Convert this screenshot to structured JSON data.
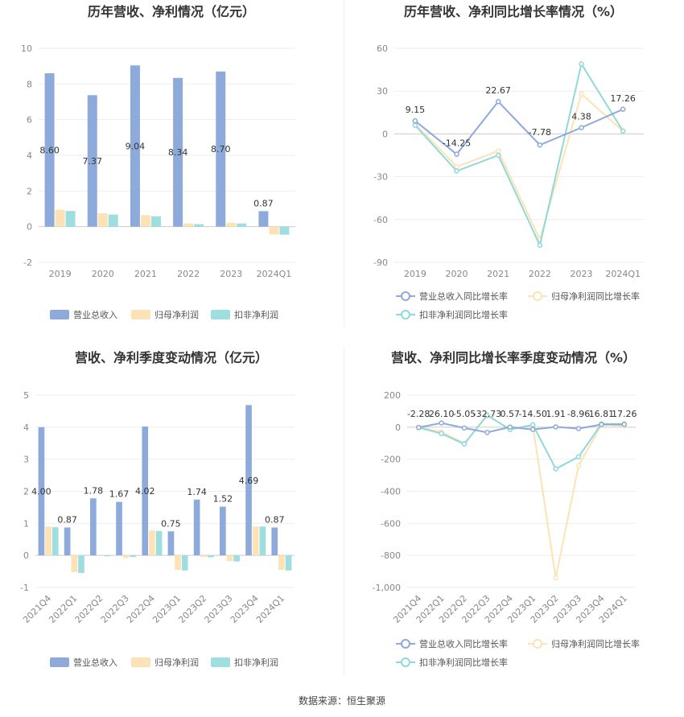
{
  "footer": "数据来源：恒生聚源",
  "colors": {
    "revenue": "#8eaadb",
    "net": "#fde2b5",
    "deducted": "#9fdede",
    "rev_line": "#8eaadb",
    "net_line": "#fde2b5",
    "ded_line": "#8fd9d9"
  },
  "chart_data": [
    {
      "id": "annual-bar",
      "type": "bar",
      "title": "历年营收、净利情况（亿元）",
      "categories": [
        "2019",
        "2020",
        "2021",
        "2022",
        "2023",
        "2024Q1"
      ],
      "series": [
        {
          "name": "营业总收入",
          "values": [
            8.6,
            7.37,
            9.04,
            8.34,
            8.7,
            0.87
          ],
          "labels": [
            "8.60",
            "7.37",
            "9.04",
            "8.34",
            "8.70",
            "0.87"
          ]
        },
        {
          "name": "归母净利润",
          "values": [
            0.95,
            0.75,
            0.65,
            0.18,
            0.22,
            -0.43
          ]
        },
        {
          "name": "扣非净利润",
          "values": [
            0.88,
            0.68,
            0.58,
            0.14,
            0.18,
            -0.45
          ]
        }
      ],
      "yticks": [
        "10",
        "8",
        "6",
        "4",
        "2",
        "0",
        "-2"
      ],
      "ylim": [
        -2,
        10
      ]
    },
    {
      "id": "annual-line",
      "type": "line",
      "title": "历年营收、净利同比增长率情况（%）",
      "categories": [
        "2019",
        "2020",
        "2021",
        "2022",
        "2023",
        "2024Q1"
      ],
      "series": [
        {
          "name": "营业总收入同比增长率",
          "values": [
            9.15,
            -14.25,
            22.67,
            -7.78,
            4.38,
            17.26
          ],
          "labels": [
            "9.15",
            "-14.25",
            "22.67",
            "-7.78",
            "4.38",
            "17.26"
          ]
        },
        {
          "name": "归母净利润同比增长率",
          "values": [
            7,
            -23,
            -12,
            -74,
            28,
            2
          ]
        },
        {
          "name": "扣非净利润同比增长率",
          "values": [
            6,
            -26,
            -15,
            -78,
            49,
            2
          ]
        }
      ],
      "yticks": [
        "60",
        "30",
        "0",
        "-30",
        "-60",
        "-90"
      ],
      "ylim": [
        -90,
        60
      ]
    },
    {
      "id": "quarter-bar",
      "type": "bar",
      "title": "营收、净利季度变动情况（亿元）",
      "categories": [
        "2021Q4",
        "2022Q1",
        "2022Q2",
        "2022Q3",
        "2022Q4",
        "2023Q1",
        "2023Q2",
        "2023Q3",
        "2023Q4",
        "2024Q1"
      ],
      "series": [
        {
          "name": "营业总收入",
          "values": [
            4.0,
            0.87,
            1.78,
            1.67,
            4.02,
            0.75,
            1.74,
            1.52,
            4.69,
            0.87
          ],
          "labels": [
            "4.00",
            "0.87",
            "1.78",
            "1.67",
            "4.02",
            "0.75",
            "1.74",
            "1.52",
            "4.69",
            "0.87"
          ]
        },
        {
          "name": "归母净利润",
          "values": [
            0.9,
            -0.52,
            -0.02,
            -0.08,
            0.78,
            -0.45,
            -0.05,
            -0.18,
            0.9,
            -0.45
          ]
        },
        {
          "name": "扣非净利润",
          "values": [
            0.88,
            -0.55,
            -0.03,
            -0.05,
            0.76,
            -0.47,
            -0.06,
            -0.19,
            0.9,
            -0.47
          ]
        }
      ],
      "yticks": [
        "5",
        "4",
        "3",
        "2",
        "1",
        "0",
        "-1"
      ],
      "ylim": [
        -1,
        5
      ]
    },
    {
      "id": "quarter-line",
      "type": "line",
      "title": "营收、净利同比增长率季度变动情况（%）",
      "categories": [
        "2021Q4",
        "2022Q1",
        "2022Q2",
        "2022Q3",
        "2022Q4",
        "2023Q1",
        "2023Q2",
        "2023Q3",
        "2023Q4",
        "2024Q1"
      ],
      "series": [
        {
          "name": "营业总收入同比增长率",
          "values": [
            -2.28,
            26.1,
            -5.05,
            -32.73,
            0.57,
            -14.5,
            1.91,
            -8.96,
            16.81,
            17.26
          ],
          "labels": [
            "-2.28",
            "26.10",
            "-5.05",
            "-32.73",
            "0.57",
            "-14.50",
            "1.91",
            "-8.96",
            "16.81",
            "17.26"
          ]
        },
        {
          "name": "归母净利润同比增长率",
          "values": [
            0,
            -30,
            -100,
            70,
            -10,
            10,
            -940,
            -240,
            15,
            8
          ]
        },
        {
          "name": "扣非净利润同比增长率",
          "values": [
            -2,
            -40,
            -105,
            75,
            -15,
            15,
            -260,
            -185,
            20,
            20
          ]
        }
      ],
      "yticks": [
        "200",
        "0",
        "-200",
        "-400",
        "-600",
        "-800",
        "-1,000"
      ],
      "ylim": [
        -1000,
        200
      ]
    }
  ]
}
